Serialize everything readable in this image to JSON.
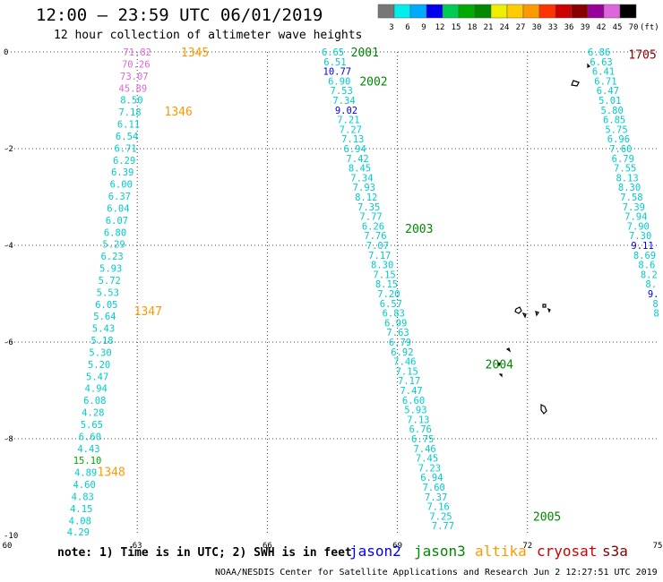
{
  "header": {
    "title": "12:00 – 23:59 UTC 06/01/2019",
    "subtitle": "12 hour collection of altimeter wave heights"
  },
  "color_scale": {
    "unit_label": "(ft)",
    "ticks": [
      "3",
      "6",
      "9",
      "12",
      "15",
      "18",
      "21",
      "24",
      "27",
      "30",
      "33",
      "36",
      "39",
      "42",
      "45",
      "70"
    ],
    "colors": [
      "#777777",
      "#00eeee",
      "#00aaff",
      "#0000ee",
      "#00cc55",
      "#00aa00",
      "#008800",
      "#eeee00",
      "#ffcc00",
      "#ff9900",
      "#ff3300",
      "#cc0000",
      "#880000",
      "#990099",
      "#dd66dd",
      "#000000"
    ]
  },
  "map": {
    "x_axis": {
      "ticks": [
        "60",
        "63",
        "66",
        "69",
        "72",
        "75"
      ],
      "range": [
        60,
        75
      ]
    },
    "y_axis": {
      "ticks": [
        "0",
        "-2",
        "-4",
        "-6",
        "-8",
        "-10"
      ],
      "range": [
        -10,
        0
      ]
    },
    "grid": "dotted"
  },
  "tracks": [
    {
      "pass_labels": [
        {
          "text": "1345",
          "lon": 64.33,
          "lat": 0.0,
          "color": "#ff9900"
        },
        {
          "text": "1346",
          "lon": 63.95,
          "lat": -1.22,
          "color": "#ff9900"
        },
        {
          "text": "1347",
          "lon": 63.25,
          "lat": -5.35,
          "color": "#ff9900"
        },
        {
          "text": "1348",
          "lon": 62.4,
          "lat": -8.68,
          "color": "#ff9900"
        }
      ],
      "points": [
        {
          "text": "71.82",
          "lon": 63.0,
          "lat": 0.0,
          "color": "#dd66dd"
        },
        {
          "text": "70.26",
          "lon": 62.97,
          "lat": -0.25,
          "color": "#dd66dd"
        },
        {
          "text": "73.07",
          "lon": 62.93,
          "lat": -0.5,
          "color": "#dd66dd"
        },
        {
          "text": "45.89",
          "lon": 62.9,
          "lat": -0.75,
          "color": "#dd66dd"
        },
        {
          "text": "8.50",
          "lon": 62.87,
          "lat": -0.99,
          "color": "#00cccc"
        },
        {
          "text": "7.18",
          "lon": 62.83,
          "lat": -1.24,
          "color": "#00cccc"
        },
        {
          "text": "6.11",
          "lon": 62.8,
          "lat": -1.49,
          "color": "#00cccc"
        },
        {
          "text": "6.54",
          "lon": 62.76,
          "lat": -1.74,
          "color": "#00cccc"
        },
        {
          "text": "6.71",
          "lon": 62.73,
          "lat": -1.99,
          "color": "#00cccc"
        },
        {
          "text": "6.29",
          "lon": 62.7,
          "lat": -2.24,
          "color": "#00cccc"
        },
        {
          "text": "6.39",
          "lon": 62.66,
          "lat": -2.48,
          "color": "#00cccc"
        },
        {
          "text": "6.00",
          "lon": 62.63,
          "lat": -2.73,
          "color": "#00cccc"
        },
        {
          "text": "6.37",
          "lon": 62.59,
          "lat": -2.98,
          "color": "#00cccc"
        },
        {
          "text": "6.04",
          "lon": 62.56,
          "lat": -3.23,
          "color": "#00cccc"
        },
        {
          "text": "6.07",
          "lon": 62.53,
          "lat": -3.48,
          "color": "#00cccc"
        },
        {
          "text": "6.80",
          "lon": 62.49,
          "lat": -3.73,
          "color": "#00cccc"
        },
        {
          "text": "5.29",
          "lon": 62.46,
          "lat": -3.97,
          "color": "#00cccc"
        },
        {
          "text": "6.23",
          "lon": 62.42,
          "lat": -4.22,
          "color": "#00cccc"
        },
        {
          "text": "5.93",
          "lon": 62.39,
          "lat": -4.47,
          "color": "#00cccc"
        },
        {
          "text": "5.72",
          "lon": 62.36,
          "lat": -4.72,
          "color": "#00cccc"
        },
        {
          "text": "5.53",
          "lon": 62.32,
          "lat": -4.97,
          "color": "#00cccc"
        },
        {
          "text": "6.05",
          "lon": 62.29,
          "lat": -5.22,
          "color": "#00cccc"
        },
        {
          "text": "5.64",
          "lon": 62.25,
          "lat": -5.46,
          "color": "#00cccc"
        },
        {
          "text": "5.43",
          "lon": 62.22,
          "lat": -5.71,
          "color": "#00cccc"
        },
        {
          "text": "5.18",
          "lon": 62.19,
          "lat": -5.96,
          "color": "#00cccc"
        },
        {
          "text": "5.30",
          "lon": 62.15,
          "lat": -6.21,
          "color": "#00cccc"
        },
        {
          "text": "5.20",
          "lon": 62.12,
          "lat": -6.46,
          "color": "#00cccc"
        },
        {
          "text": "5.47",
          "lon": 62.08,
          "lat": -6.71,
          "color": "#00cccc"
        },
        {
          "text": "4.94",
          "lon": 62.05,
          "lat": -6.95,
          "color": "#00cccc"
        },
        {
          "text": "6.08",
          "lon": 62.02,
          "lat": -7.2,
          "color": "#00cccc"
        },
        {
          "text": "4.28",
          "lon": 61.98,
          "lat": -7.45,
          "color": "#00cccc"
        },
        {
          "text": "5.65",
          "lon": 61.95,
          "lat": -7.7,
          "color": "#00cccc"
        },
        {
          "text": "6.60",
          "lon": 61.91,
          "lat": -7.95,
          "color": "#00cccc"
        },
        {
          "text": "4.43",
          "lon": 61.88,
          "lat": -8.2,
          "color": "#00cccc"
        },
        {
          "text": "15.10",
          "lon": 61.85,
          "lat": -8.44,
          "color": "#00aa00"
        },
        {
          "text": "4.89",
          "lon": 61.81,
          "lat": -8.69,
          "color": "#00cccc"
        },
        {
          "text": "4.60",
          "lon": 61.78,
          "lat": -8.94,
          "color": "#00cccc"
        },
        {
          "text": "4.83",
          "lon": 61.74,
          "lat": -9.19,
          "color": "#00cccc"
        },
        {
          "text": "4.15",
          "lon": 61.71,
          "lat": -9.44,
          "color": "#00cccc"
        },
        {
          "text": "4.08",
          "lon": 61.68,
          "lat": -9.69,
          "color": "#00cccc"
        },
        {
          "text": "4.29",
          "lon": 61.64,
          "lat": -9.93,
          "color": "#00cccc"
        }
      ]
    },
    {
      "pass_labels": [
        {
          "text": "2001",
          "lon": 68.25,
          "lat": 0.0,
          "color": "#008800"
        },
        {
          "text": "2002",
          "lon": 68.45,
          "lat": -0.6,
          "color": "#008800"
        },
        {
          "text": "2003",
          "lon": 69.5,
          "lat": -3.65,
          "color": "#008800"
        },
        {
          "text": "2004",
          "lon": 71.35,
          "lat": -6.45,
          "color": "#008800"
        },
        {
          "text": "2005",
          "lon": 72.45,
          "lat": -9.6,
          "color": "#008800"
        }
      ],
      "points": [
        {
          "text": "6.65",
          "lon": 67.51,
          "lat": 0.0,
          "color": "#00cccc"
        },
        {
          "text": "6.51",
          "lon": 67.56,
          "lat": -0.2,
          "color": "#00cccc"
        },
        {
          "text": "10.77",
          "lon": 67.61,
          "lat": -0.4,
          "color": "#0000ee"
        },
        {
          "text": "6.90",
          "lon": 67.66,
          "lat": -0.6,
          "color": "#00cccc"
        },
        {
          "text": "7.53",
          "lon": 67.71,
          "lat": -0.8,
          "color": "#00cccc"
        },
        {
          "text": "7.34",
          "lon": 67.77,
          "lat": -1.0,
          "color": "#00cccc"
        },
        {
          "text": "9.02",
          "lon": 67.82,
          "lat": -1.2,
          "color": "#0000ee"
        },
        {
          "text": "7.21",
          "lon": 67.87,
          "lat": -1.4,
          "color": "#00cccc"
        },
        {
          "text": "7.27",
          "lon": 67.92,
          "lat": -1.6,
          "color": "#00cccc"
        },
        {
          "text": "7.13",
          "lon": 67.97,
          "lat": -1.8,
          "color": "#00cccc"
        },
        {
          "text": "6.94",
          "lon": 68.02,
          "lat": -2.0,
          "color": "#00cccc"
        },
        {
          "text": "7.42",
          "lon": 68.08,
          "lat": -2.2,
          "color": "#00cccc"
        },
        {
          "text": "8.45",
          "lon": 68.13,
          "lat": -2.4,
          "color": "#00cccc"
        },
        {
          "text": "7.34",
          "lon": 68.18,
          "lat": -2.6,
          "color": "#00cccc"
        },
        {
          "text": "7.93",
          "lon": 68.23,
          "lat": -2.8,
          "color": "#00cccc"
        },
        {
          "text": "8.12",
          "lon": 68.28,
          "lat": -3.0,
          "color": "#00cccc"
        },
        {
          "text": "7.35",
          "lon": 68.34,
          "lat": -3.2,
          "color": "#00cccc"
        },
        {
          "text": "7.77",
          "lon": 68.39,
          "lat": -3.4,
          "color": "#00cccc"
        },
        {
          "text": "6.26",
          "lon": 68.44,
          "lat": -3.6,
          "color": "#00cccc"
        },
        {
          "text": "7.76",
          "lon": 68.49,
          "lat": -3.8,
          "color": "#00cccc"
        },
        {
          "text": "7.07",
          "lon": 68.54,
          "lat": -4.0,
          "color": "#00cccc"
        },
        {
          "text": "7.17",
          "lon": 68.59,
          "lat": -4.2,
          "color": "#00cccc"
        },
        {
          "text": "8.30",
          "lon": 68.65,
          "lat": -4.4,
          "color": "#00cccc"
        },
        {
          "text": "7.15",
          "lon": 68.7,
          "lat": -4.6,
          "color": "#00cccc"
        },
        {
          "text": "8.15",
          "lon": 68.75,
          "lat": -4.8,
          "color": "#00cccc"
        },
        {
          "text": "7.20",
          "lon": 68.8,
          "lat": -5.0,
          "color": "#00cccc"
        },
        {
          "text": "6.57",
          "lon": 68.85,
          "lat": -5.2,
          "color": "#00cccc"
        },
        {
          "text": "6.83",
          "lon": 68.91,
          "lat": -5.4,
          "color": "#00cccc"
        },
        {
          "text": "6.99",
          "lon": 68.96,
          "lat": -5.6,
          "color": "#00cccc"
        },
        {
          "text": "7.63",
          "lon": 69.01,
          "lat": -5.8,
          "color": "#00cccc"
        },
        {
          "text": "6.79",
          "lon": 69.06,
          "lat": -6.0,
          "color": "#00cccc"
        },
        {
          "text": "6.92",
          "lon": 69.11,
          "lat": -6.2,
          "color": "#00cccc"
        },
        {
          "text": "7.46",
          "lon": 69.17,
          "lat": -6.4,
          "color": "#00cccc"
        },
        {
          "text": "7.15",
          "lon": 69.22,
          "lat": -6.6,
          "color": "#00cccc"
        },
        {
          "text": "7.17",
          "lon": 69.27,
          "lat": -6.8,
          "color": "#00cccc"
        },
        {
          "text": "7.47",
          "lon": 69.32,
          "lat": -7.0,
          "color": "#00cccc"
        },
        {
          "text": "6.60",
          "lon": 69.37,
          "lat": -7.2,
          "color": "#00cccc"
        },
        {
          "text": "5.93",
          "lon": 69.42,
          "lat": -7.4,
          "color": "#00cccc"
        },
        {
          "text": "7.13",
          "lon": 69.48,
          "lat": -7.6,
          "color": "#00cccc"
        },
        {
          "text": "6.76",
          "lon": 69.53,
          "lat": -7.8,
          "color": "#00cccc"
        },
        {
          "text": "6.75",
          "lon": 69.58,
          "lat": -8.0,
          "color": "#00cccc"
        },
        {
          "text": "7.46",
          "lon": 69.63,
          "lat": -8.2,
          "color": "#00cccc"
        },
        {
          "text": "7.45",
          "lon": 69.68,
          "lat": -8.4,
          "color": "#00cccc"
        },
        {
          "text": "7.23",
          "lon": 69.74,
          "lat": -8.6,
          "color": "#00cccc"
        },
        {
          "text": "6.94",
          "lon": 69.79,
          "lat": -8.8,
          "color": "#00cccc"
        },
        {
          "text": "7.60",
          "lon": 69.84,
          "lat": -9.0,
          "color": "#00cccc"
        },
        {
          "text": "7.37",
          "lon": 69.89,
          "lat": -9.2,
          "color": "#00cccc"
        },
        {
          "text": "7.16",
          "lon": 69.94,
          "lat": -9.4,
          "color": "#00cccc"
        },
        {
          "text": "7.25",
          "lon": 70.0,
          "lat": -9.6,
          "color": "#00cccc"
        },
        {
          "text": "7.77",
          "lon": 70.05,
          "lat": -9.8,
          "color": "#00cccc"
        }
      ]
    },
    {
      "pass_labels": [
        {
          "text": "1705",
          "lon": 74.65,
          "lat": -0.05,
          "color": "#880000"
        }
      ],
      "points": [
        {
          "text": "6.86",
          "lon": 73.65,
          "lat": 0.0,
          "color": "#00cccc"
        },
        {
          "text": "6.63",
          "lon": 73.7,
          "lat": -0.2,
          "color": "#00cccc"
        },
        {
          "text": "6.41",
          "lon": 73.75,
          "lat": -0.4,
          "color": "#00cccc"
        },
        {
          "text": "6.71",
          "lon": 73.8,
          "lat": -0.6,
          "color": "#00cccc"
        },
        {
          "text": "6.47",
          "lon": 73.85,
          "lat": -0.8,
          "color": "#00cccc"
        },
        {
          "text": "5.01",
          "lon": 73.9,
          "lat": -1.0,
          "color": "#00cccc"
        },
        {
          "text": "5.80",
          "lon": 73.95,
          "lat": -1.2,
          "color": "#00cccc"
        },
        {
          "text": "6.85",
          "lon": 74.0,
          "lat": -1.4,
          "color": "#00cccc"
        },
        {
          "text": "5.75",
          "lon": 74.05,
          "lat": -1.6,
          "color": "#00cccc"
        },
        {
          "text": "6.96",
          "lon": 74.1,
          "lat": -1.8,
          "color": "#00cccc"
        },
        {
          "text": "7.60",
          "lon": 74.15,
          "lat": -2.0,
          "color": "#00cccc"
        },
        {
          "text": "6.79",
          "lon": 74.2,
          "lat": -2.2,
          "color": "#00cccc"
        },
        {
          "text": "7.55",
          "lon": 74.25,
          "lat": -2.4,
          "color": "#00cccc"
        },
        {
          "text": "8.13",
          "lon": 74.3,
          "lat": -2.6,
          "color": "#00cccc"
        },
        {
          "text": "8.30",
          "lon": 74.35,
          "lat": -2.8,
          "color": "#00cccc"
        },
        {
          "text": "7.58",
          "lon": 74.4,
          "lat": -3.0,
          "color": "#00cccc"
        },
        {
          "text": "7.39",
          "lon": 74.45,
          "lat": -3.2,
          "color": "#00cccc"
        },
        {
          "text": "7.94",
          "lon": 74.5,
          "lat": -3.4,
          "color": "#00cccc"
        },
        {
          "text": "7.90",
          "lon": 74.55,
          "lat": -3.6,
          "color": "#00cccc"
        },
        {
          "text": "7.30",
          "lon": 74.6,
          "lat": -3.8,
          "color": "#00cccc"
        },
        {
          "text": "9.11",
          "lon": 74.65,
          "lat": -4.0,
          "color": "#0000ee"
        },
        {
          "text": "8.69",
          "lon": 74.7,
          "lat": -4.2,
          "color": "#00cccc"
        },
        {
          "text": "8.6",
          "lon": 74.75,
          "lat": -4.4,
          "color": "#00cccc"
        },
        {
          "text": "8.2",
          "lon": 74.8,
          "lat": -4.6,
          "color": "#00cccc"
        },
        {
          "text": "8.",
          "lon": 74.85,
          "lat": -4.8,
          "color": "#00cccc"
        },
        {
          "text": "9.",
          "lon": 74.9,
          "lat": -5.0,
          "color": "#0000ee"
        },
        {
          "text": "8",
          "lon": 74.95,
          "lat": -5.2,
          "color": "#00cccc"
        },
        {
          "text": "8",
          "lon": 74.97,
          "lat": -5.4,
          "color": "#00cccc"
        }
      ]
    }
  ],
  "footer": {
    "note": "note: 1) Time is in UTC; 2) SWH is in feet",
    "credit": "NOAA/NESDIS Center for Satellite Applications and Research   Jun  2 12:27:51 UTC 2019"
  },
  "satellites": [
    {
      "name": "jason2",
      "color": "#0000ee"
    },
    {
      "name": "jason3",
      "color": "#008800"
    },
    {
      "name": "altika",
      "color": "#ff9900"
    },
    {
      "name": "cryosat",
      "color": "#cc0000"
    },
    {
      "name": "s3a",
      "color": "#880000"
    }
  ]
}
